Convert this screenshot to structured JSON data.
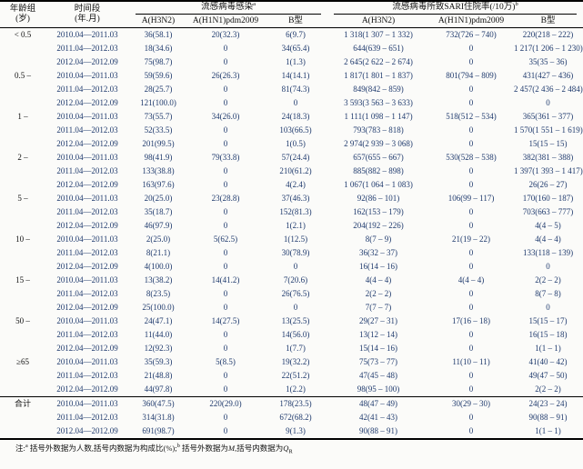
{
  "colors": {
    "ink": "#111111",
    "number_ink": "#1f3a6d",
    "paper": "#fbfbf9"
  },
  "table": {
    "header": {
      "age_l1": "年龄组",
      "age_l2": "(岁)",
      "period_l1": "时间段",
      "period_l2": "(年.月)",
      "group1": "流感病毒感染",
      "group1_sup": "a",
      "group2": "流感病毒所致SARI住院率(/10万)",
      "group2_sup": "b",
      "subcols": [
        "A(H3N2)",
        "A(H1N1)pdm2009",
        "B型",
        "A(H3N2)",
        "A(H1N1)pdm2009",
        "B型"
      ]
    },
    "groups": [
      {
        "age": "< 0.5",
        "rows": [
          [
            "2010.04—2011.03",
            "36(58.1)",
            "20(32.3)",
            "6(9.7)",
            "1 318(1 307 – 1 332)",
            "732(726 – 740)",
            "220(218 – 222)"
          ],
          [
            "2011.04—2012.03",
            "18(34.6)",
            "0",
            "34(65.4)",
            "644(639 – 651)",
            "0",
            "1 217(1 206 – 1 230)"
          ],
          [
            "2012.04—2012.09",
            "75(98.7)",
            "0",
            "1(1.3)",
            "2 645(2 622 – 2 674)",
            "0",
            "35(35 – 36)"
          ]
        ]
      },
      {
        "age": "0.5 –",
        "rows": [
          [
            "2010.04—2011.03",
            "59(59.6)",
            "26(26.3)",
            "14(14.1)",
            "1 817(1 801 – 1 837)",
            "801(794 – 809)",
            "431(427 – 436)"
          ],
          [
            "2011.04—2012.03",
            "28(25.7)",
            "0",
            "81(74.3)",
            "849(842 – 859)",
            "0",
            "2 457(2 436 – 2 484)"
          ],
          [
            "2012.04—2012.09",
            "121(100.0)",
            "0",
            "0",
            "3 593(3 563 – 3 633)",
            "0",
            "0"
          ]
        ]
      },
      {
        "age": "1 –",
        "rows": [
          [
            "2010.04—2011.03",
            "73(55.7)",
            "34(26.0)",
            "24(18.3)",
            "1 111(1 098 – 1 147)",
            "518(512 – 534)",
            "365(361 – 377)"
          ],
          [
            "2011.04—2012.03",
            "52(33.5)",
            "0",
            "103(66.5)",
            "793(783 – 818)",
            "0",
            "1 570(1 551 – 1 619)"
          ],
          [
            "2012.04—2012.09",
            "201(99.5)",
            "0",
            "1(0.5)",
            "2 974(2 939 – 3 068)",
            "0",
            "15(15 – 15)"
          ]
        ]
      },
      {
        "age": "2 –",
        "rows": [
          [
            "2010.04—2011.03",
            "98(41.9)",
            "79(33.8)",
            "57(24.4)",
            "657(655 – 667)",
            "530(528 – 538)",
            "382(381 – 388)"
          ],
          [
            "2011.04—2012.03",
            "133(38.8)",
            "0",
            "210(61.2)",
            "885(882 – 898)",
            "0",
            "1 397(1 393 – 1 417)"
          ],
          [
            "2012.04—2012.09",
            "163(97.6)",
            "0",
            "4(2.4)",
            "1 067(1 064 – 1 083)",
            "0",
            "26(26 – 27)"
          ]
        ]
      },
      {
        "age": "5 –",
        "rows": [
          [
            "2010.04—2011.03",
            "20(25.0)",
            "23(28.8)",
            "37(46.3)",
            "92(86 – 101)",
            "106(99 – 117)",
            "170(160 – 187)"
          ],
          [
            "2011.04—2012.03",
            "35(18.7)",
            "0",
            "152(81.3)",
            "162(153 – 179)",
            "0",
            "703(663 – 777)"
          ],
          [
            "2012.04—2012.09",
            "46(97.9)",
            "0",
            "1(2.1)",
            "204(192 – 226)",
            "0",
            "4(4 – 5)"
          ]
        ]
      },
      {
        "age": "10 –",
        "rows": [
          [
            "2010.04—2011.03",
            "2(25.0)",
            "5(62.5)",
            "1(12.5)",
            "8(7 – 9)",
            "21(19 – 22)",
            "4(4 – 4)"
          ],
          [
            "2011.04—2012.03",
            "8(21.1)",
            "0",
            "30(78.9)",
            "36(32 – 37)",
            "0",
            "133(118 – 139)"
          ],
          [
            "2012.04—2012.09",
            "4(100.0)",
            "0",
            "0",
            "16(14 – 16)",
            "0",
            "0"
          ]
        ]
      },
      {
        "age": "15 –",
        "rows": [
          [
            "2010.04—2011.03",
            "13(38.2)",
            "14(41.2)",
            "7(20.6)",
            "4(4 – 4)",
            "4(4 – 4)",
            "2(2 – 2)"
          ],
          [
            "2011.04—2012.03",
            "8(23.5)",
            "0",
            "26(76.5)",
            "2(2 – 2)",
            "0",
            "8(7 – 8)"
          ],
          [
            "2012.04—2012.09",
            "25(100.0)",
            "0",
            "0",
            "7(7 – 7)",
            "0",
            "0"
          ]
        ]
      },
      {
        "age": "50 –",
        "rows": [
          [
            "2010.04—2011.03",
            "24(47.1)",
            "14(27.5)",
            "13(25.5)",
            "29(27 – 31)",
            "17(16 – 18)",
            "15(15 – 17)"
          ],
          [
            "2011.04—2012.03",
            "11(44.0)",
            "0",
            "14(56.0)",
            "13(12 – 14)",
            "0",
            "16(15 – 18)"
          ],
          [
            "2012.04—2012.09",
            "12(92.3)",
            "0",
            "1(7.7)",
            "15(14 – 16)",
            "0",
            "1(1 – 1)"
          ]
        ]
      },
      {
        "age": "≥65",
        "rows": [
          [
            "2010.04—2011.03",
            "35(59.3)",
            "5(8.5)",
            "19(32.2)",
            "75(73 – 77)",
            "11(10 – 11)",
            "41(40 – 42)"
          ],
          [
            "2011.04—2012.03",
            "21(48.8)",
            "0",
            "22(51.2)",
            "47(45 – 48)",
            "0",
            "49(47 – 50)"
          ],
          [
            "2012.04—2012.09",
            "44(97.8)",
            "0",
            "1(2.2)",
            "98(95 – 100)",
            "0",
            "2(2 – 2)"
          ]
        ]
      },
      {
        "age": "合计",
        "rows": [
          [
            "2010.04—2011.03",
            "360(47.5)",
            "220(29.0)",
            "178(23.5)",
            "48(47 – 49)",
            "30(29 – 30)",
            "24(23 – 24)"
          ],
          [
            "2011.04—2012.03",
            "314(31.8)",
            "0",
            "672(68.2)",
            "42(41 – 43)",
            "0",
            "90(88 – 91)"
          ],
          [
            "2012.04—2012.09",
            "691(98.7)",
            "0",
            "9(1.3)",
            "90(88 – 91)",
            "0",
            "1(1 – 1)"
          ]
        ]
      }
    ],
    "footnote": {
      "prefix": "注:",
      "sup_a": "a",
      "text_a": "括号外数据为人数,括号内数据为构成比(%);",
      "sup_b": "b",
      "text_b_pre": "括号外数据为",
      "var_m": "M",
      "text_b_mid": ",括号内数据为",
      "var_q": "Q",
      "q_sub": "R"
    }
  }
}
